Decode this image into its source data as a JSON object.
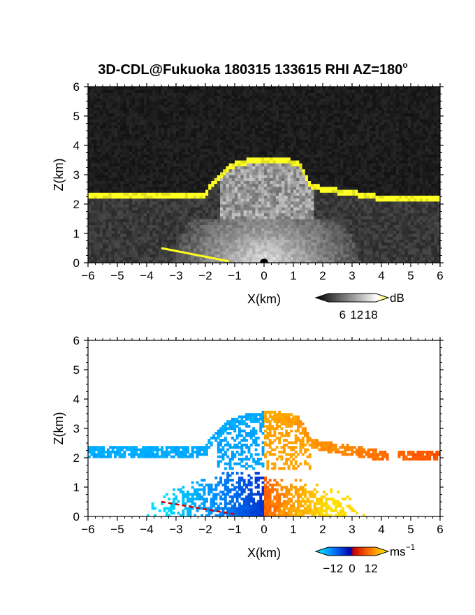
{
  "figure": {
    "title": "3D-CDL@Fukuoka 180315 133615 RHI AZ=180",
    "title_degree": "o"
  },
  "chart_data": [
    {
      "type": "heatmap",
      "name": "signal-intensity",
      "xlabel": "X(km)",
      "ylabel": "Z(km)",
      "xlim": [
        -6,
        6
      ],
      "ylim": [
        0,
        6
      ],
      "xticks": [
        -6,
        -5,
        -4,
        -3,
        -2,
        -1,
        0,
        1,
        2,
        3,
        4,
        5,
        6
      ],
      "yticks": [
        0,
        1,
        2,
        3,
        4,
        5,
        6
      ],
      "background": "#161616",
      "colorbar": {
        "unit": "dB",
        "ticks": [
          6,
          12,
          18
        ],
        "range": [
          0,
          20
        ],
        "colors": [
          "#000000",
          "#ffffff",
          "#ffff00"
        ]
      },
      "features": {
        "cloud_top_km": [
          [
            -6,
            2.35
          ],
          [
            -2.0,
            2.35
          ],
          [
            -1.8,
            2.7
          ],
          [
            -1.2,
            3.3
          ],
          [
            -0.4,
            3.5
          ],
          [
            0.4,
            3.55
          ],
          [
            1.2,
            3.4
          ],
          [
            1.6,
            2.6
          ],
          [
            4.1,
            2.2
          ],
          [
            4.4,
            2.25
          ],
          [
            6,
            2.2
          ]
        ],
        "boundary_layer_top_km": 1.5
      }
    },
    {
      "type": "heatmap",
      "name": "doppler-velocity",
      "xlabel": "X(km)",
      "ylabel": "Z(km)",
      "xlim": [
        -6,
        6
      ],
      "ylim": [
        0,
        6
      ],
      "xticks": [
        -6,
        -5,
        -4,
        -3,
        -2,
        -1,
        0,
        1,
        2,
        3,
        4,
        5,
        6
      ],
      "yticks": [
        0,
        1,
        2,
        3,
        4,
        5,
        6
      ],
      "background": "#ffffff",
      "colorbar": {
        "unit": "ms",
        "unit_exponent": "−1",
        "ticks": [
          "−12",
          "0",
          "12"
        ],
        "tick_values": [
          -12,
          0,
          12
        ],
        "range": [
          -15,
          15
        ],
        "colors": [
          "#00ffff",
          "#0066ff",
          "#0000aa",
          "#cc0000",
          "#ff6600",
          "#ffff00"
        ]
      },
      "features": {
        "layer_velocity": [
          [
            -6,
            -9
          ],
          [
            -1,
            -11
          ],
          [
            0,
            0
          ],
          [
            1,
            8
          ],
          [
            6,
            4
          ]
        ]
      }
    }
  ]
}
